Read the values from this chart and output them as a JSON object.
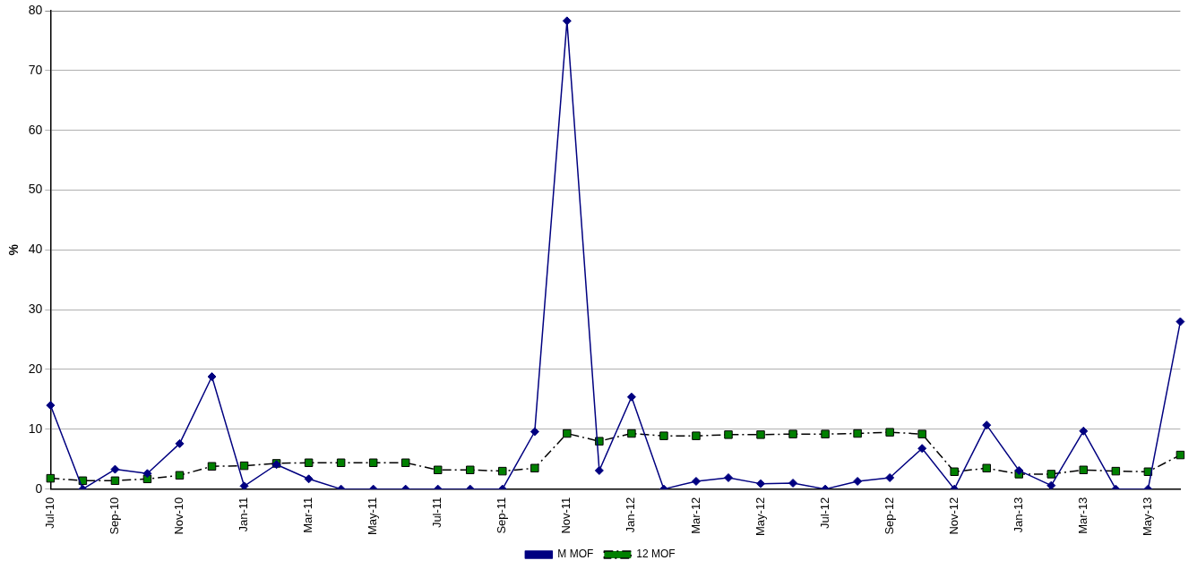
{
  "chart_data": {
    "type": "line",
    "ylabel": "%",
    "categories": [
      "Jul-10",
      null,
      "Sep-10",
      null,
      "Nov-10",
      null,
      "Jan-11",
      null,
      "Mar-11",
      null,
      "May-11",
      null,
      "Jul-11",
      null,
      "Sep-11",
      null,
      "Nov-11",
      null,
      "Jan-12",
      null,
      "Mar-12",
      null,
      "May-12",
      null,
      "Jul-12",
      null,
      "Sep-12",
      null,
      "Nov-12",
      null,
      "Jan-13",
      null,
      "Mar-13",
      null,
      "May-13",
      null
    ],
    "series": [
      {
        "name": "M MOF",
        "color": "#000080",
        "marker": "diamond",
        "line_style": "solid",
        "values": [
          14,
          0,
          3.3,
          2.6,
          7.6,
          18.8,
          0.5,
          4.1,
          1.7,
          0,
          0,
          0,
          0,
          0,
          0,
          9.6,
          78.3,
          3.1,
          15.4,
          0,
          1.3,
          1.9,
          0.9,
          1.0,
          0,
          1.3,
          1.9,
          6.8,
          0,
          10.7,
          3.1,
          0.6,
          9.7,
          0,
          0,
          28
        ]
      },
      {
        "name": "12 MOF",
        "color": "#008000",
        "marker": "square",
        "line_style": "dashed",
        "values": [
          1.8,
          1.4,
          1.4,
          1.7,
          2.3,
          3.8,
          3.9,
          4.3,
          4.4,
          4.4,
          4.4,
          4.4,
          3.2,
          3.2,
          3.0,
          3.5,
          9.3,
          8.0,
          9.3,
          8.9,
          8.9,
          9.1,
          9.1,
          9.2,
          9.2,
          9.3,
          9.5,
          9.2,
          2.9,
          3.5,
          2.5,
          2.5,
          3.2,
          3.0,
          2.9,
          5.7
        ]
      }
    ],
    "ylim": [
      0,
      80
    ],
    "yticks": [
      0,
      10,
      20,
      30,
      40,
      50,
      60,
      70,
      80
    ],
    "grid": "y",
    "legend": "bottom"
  }
}
